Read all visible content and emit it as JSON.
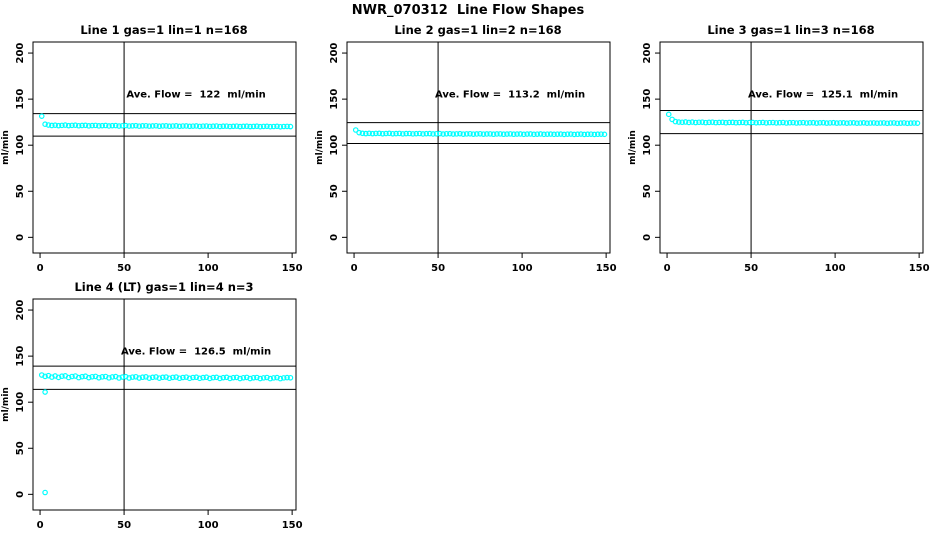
{
  "page_title": "NWR_070312  Line Flow Shapes",
  "accent_color": "#00FFFF",
  "chart_data": {
    "type": "scatter",
    "title": "NWR_070312  Line Flow Shapes",
    "ylabel": "ml/min",
    "xlabel": "",
    "marker": "open-circle",
    "marker_color": "#00FFFF",
    "line_color": "#000000",
    "grid": false,
    "axes": {
      "xlim": [
        -4.2,
        152.3
      ],
      "ylim": [
        -17,
        212
      ],
      "xticks": [
        0,
        50,
        100,
        150
      ],
      "yticks": [
        0,
        50,
        100,
        150,
        200
      ]
    },
    "vline_x": 50,
    "hline_band_pct": 10,
    "annotation_y": 152,
    "plots": [
      {
        "title": "Line 1 gas=1 lin=1 n=168",
        "annotation": "Ave. Flow =  122  ml/min",
        "ave_flow": 122,
        "n": 168,
        "hlines": [
          134.2,
          109.8
        ],
        "x_start": 1,
        "x_step": 2,
        "y": [
          131.5,
          122.8,
          121.9,
          121.4,
          121.7,
          121.2,
          121.5,
          121.8,
          121.2,
          121.5,
          121.7,
          121.1,
          121.4,
          121.6,
          121.0,
          121.3,
          121.5,
          121.0,
          121.2,
          121.4,
          120.9,
          121.2,
          121.3,
          120.8,
          121.1,
          121.3,
          120.8,
          121.0,
          121.2,
          120.7,
          121.0,
          121.1,
          120.7,
          120.9,
          121.1,
          120.6,
          120.9,
          121.0,
          120.6,
          120.8,
          121.0,
          120.5,
          120.8,
          120.9,
          120.5,
          120.7,
          120.9,
          120.4,
          120.7,
          120.8,
          120.4,
          120.6,
          120.8,
          120.3,
          120.6,
          120.7,
          120.3,
          120.5,
          120.7,
          120.2,
          120.5,
          120.6,
          120.2,
          120.4,
          120.6,
          120.1,
          120.4,
          120.5,
          120.1,
          120.3,
          120.5,
          120.0,
          120.3,
          120.4,
          120.2
        ],
        "extra_points": []
      },
      {
        "title": "Line 2 gas=1 lin=2 n=168",
        "annotation": "Ave. Flow =  113.2  ml/min",
        "ave_flow": 113.2,
        "n": 168,
        "hlines": [
          124.5,
          101.9
        ],
        "x_start": 1,
        "x_step": 2,
        "y": [
          116.5,
          113.6,
          112.9,
          112.6,
          112.9,
          112.5,
          112.8,
          112.9,
          112.4,
          112.7,
          112.9,
          112.4,
          112.6,
          112.8,
          112.3,
          112.6,
          112.7,
          112.3,
          112.5,
          112.7,
          112.2,
          112.5,
          112.6,
          112.2,
          112.4,
          112.6,
          112.1,
          112.4,
          112.5,
          112.1,
          112.3,
          112.5,
          112.0,
          112.3,
          112.4,
          112.0,
          112.2,
          112.4,
          112.0,
          112.2,
          112.3,
          111.9,
          112.2,
          112.3,
          111.9,
          112.1,
          112.3,
          111.9,
          112.1,
          112.2,
          111.8,
          112.1,
          112.2,
          111.8,
          112.0,
          112.2,
          111.8,
          112.0,
          112.1,
          111.8,
          112.0,
          112.1,
          111.7,
          112.0,
          112.1,
          111.7,
          111.9,
          112.1,
          111.7,
          111.9,
          112.0,
          111.7,
          111.9,
          112.0,
          111.8
        ],
        "extra_points": []
      },
      {
        "title": "Line 3 gas=1 lin=3 n=168",
        "annotation": "Ave. Flow =  125.1  ml/min",
        "ave_flow": 125.1,
        "n": 168,
        "hlines": [
          137.6,
          112.6
        ],
        "x_start": 1,
        "x_step": 2,
        "y": [
          133.5,
          128.0,
          125.6,
          125.1,
          124.9,
          125.2,
          124.7,
          125.1,
          124.6,
          124.9,
          125.0,
          124.5,
          124.8,
          125.0,
          124.5,
          124.7,
          124.9,
          124.4,
          124.7,
          124.8,
          124.4,
          124.6,
          124.8,
          124.3,
          124.6,
          124.7,
          124.3,
          124.5,
          124.7,
          124.2,
          124.5,
          124.6,
          124.2,
          124.4,
          124.6,
          124.1,
          124.4,
          124.5,
          124.1,
          124.3,
          124.5,
          124.1,
          124.3,
          124.4,
          124.0,
          124.3,
          124.4,
          124.0,
          124.2,
          124.4,
          124.0,
          124.2,
          124.3,
          123.9,
          124.2,
          124.3,
          123.9,
          124.1,
          124.3,
          123.9,
          124.1,
          124.2,
          123.9,
          124.1,
          124.2,
          123.8,
          124.1,
          124.2,
          123.8,
          124.0,
          124.2,
          123.8,
          124.0,
          124.1,
          123.9
        ],
        "extra_points": []
      },
      {
        "title": "Line 4 (LT) gas=1 lin=4 n=3",
        "annotation": "Ave. Flow =  126.5  ml/min",
        "ave_flow": 126.5,
        "n": 3,
        "hlines": [
          139.2,
          113.9
        ],
        "x_start": 1,
        "x_step": 2,
        "y": [
          129.5,
          128.0,
          128.8,
          127.2,
          128.5,
          126.9,
          128.2,
          128.6,
          126.8,
          127.9,
          128.4,
          126.7,
          127.7,
          128.2,
          126.6,
          127.6,
          128.0,
          126.5,
          127.5,
          127.9,
          126.4,
          127.4,
          127.8,
          126.3,
          127.3,
          127.7,
          126.3,
          127.2,
          127.6,
          126.2,
          127.1,
          127.5,
          126.1,
          127.0,
          127.4,
          126.1,
          127.0,
          127.3,
          126.0,
          126.9,
          127.3,
          126.0,
          126.8,
          127.2,
          125.9,
          126.8,
          127.1,
          125.9,
          126.7,
          127.1,
          125.8,
          126.7,
          127.0,
          125.8,
          126.6,
          127.0,
          125.8,
          126.6,
          126.9,
          125.7,
          126.5,
          126.9,
          125.7,
          126.5,
          126.8,
          125.7,
          126.4,
          126.8,
          125.6,
          126.4,
          126.7,
          125.6,
          126.4,
          126.7,
          126.5
        ],
        "extra_points": [
          [
            3,
            111
          ],
          [
            3,
            2
          ]
        ]
      }
    ]
  }
}
